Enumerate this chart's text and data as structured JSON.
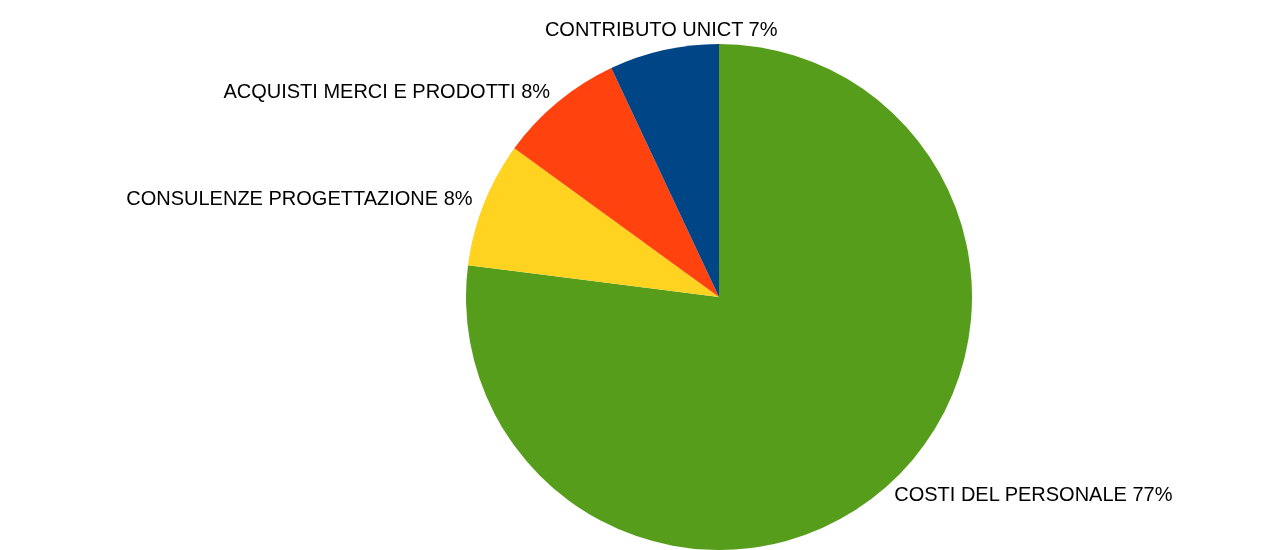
{
  "chart_data": {
    "type": "pie",
    "categories": [
      "COSTI DEL PERSONALE",
      "CONSULENZE PROGETTAZIONE",
      "ACQUISTI MERCI E PRODOTTI",
      "CONTRIBUTO UNICT"
    ],
    "values": [
      77,
      8,
      8,
      7
    ],
    "value_labels": [
      "77%",
      "8%",
      "8%",
      "7%"
    ],
    "colors": [
      "#579d1c",
      "#ffd320",
      "#ff420e",
      "#004586"
    ],
    "legend": false
  }
}
